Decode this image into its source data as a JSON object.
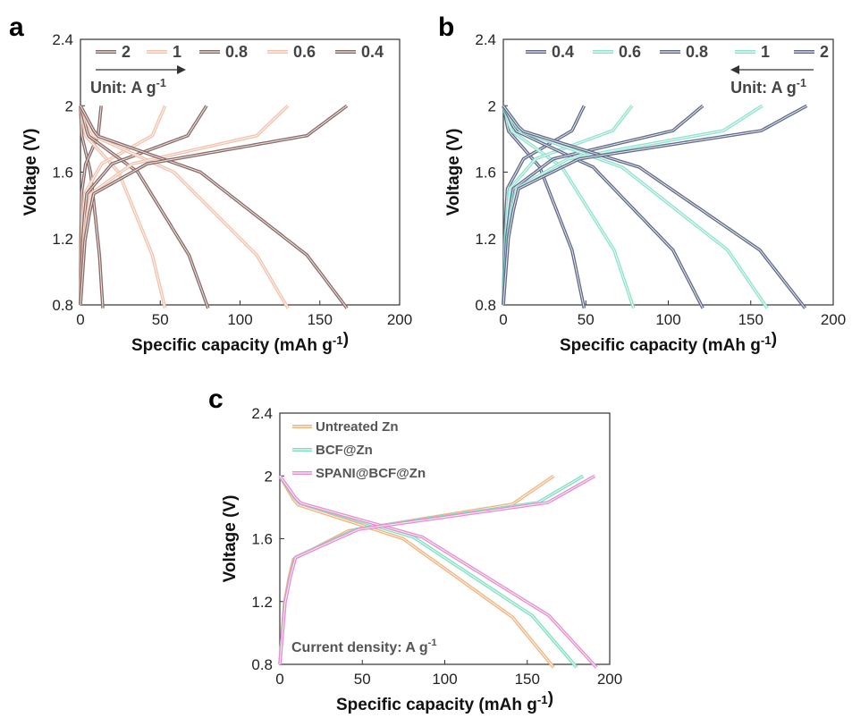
{
  "chart_data": [
    {
      "panel_label": "a",
      "type": "line",
      "xlabel": "Specific capacity (mAh g-1)",
      "ylabel": "Voltage (V)",
      "xlim": [
        0,
        200
      ],
      "ylim": [
        0.8,
        2.4
      ],
      "xticks": [
        0,
        50,
        100,
        150,
        200
      ],
      "yticks": [
        0.8,
        1.2,
        1.6,
        2,
        2.4
      ],
      "legend_position": "top",
      "legend_direction_arrow": "right",
      "note": "Unit: A g-1",
      "grid": false,
      "series": [
        {
          "name": "2",
          "color": "#8a6a66",
          "discharge_capacity": 14,
          "charge_capacity": 13,
          "plateau_v": 1.62
        },
        {
          "name": "1",
          "color": "#f2c2ad",
          "discharge_capacity": 53,
          "charge_capacity": 53,
          "plateau_v": 1.62
        },
        {
          "name": "0.8",
          "color": "#8a6a66",
          "discharge_capacity": 80,
          "charge_capacity": 79,
          "plateau_v": 1.62
        },
        {
          "name": "0.6",
          "color": "#f2c2ad",
          "discharge_capacity": 130,
          "charge_capacity": 130,
          "plateau_v": 1.62
        },
        {
          "name": "0.4",
          "color": "#8a6a66",
          "discharge_capacity": 167,
          "charge_capacity": 167,
          "plateau_v": 1.62
        }
      ]
    },
    {
      "panel_label": "b",
      "type": "line",
      "xlabel": "Specific capacity (mAh g-1)",
      "ylabel": "Voltage (V)",
      "xlim": [
        0,
        200
      ],
      "ylim": [
        0.8,
        2.4
      ],
      "xticks": [
        0,
        50,
        100,
        150,
        200
      ],
      "yticks": [
        0.8,
        1.2,
        1.6,
        2,
        2.4
      ],
      "legend_position": "top",
      "legend_direction_arrow": "left",
      "note": "Unit: A g-1",
      "grid": false,
      "series": [
        {
          "name": "0.4",
          "color": "#616a8a",
          "discharge_capacity": 49,
          "charge_capacity": 49,
          "plateau_v": 1.65
        },
        {
          "name": "0.6",
          "color": "#8ee3cf",
          "discharge_capacity": 79,
          "charge_capacity": 78,
          "plateau_v": 1.65
        },
        {
          "name": "0.8",
          "color": "#616a8a",
          "discharge_capacity": 121,
          "charge_capacity": 121,
          "plateau_v": 1.65
        },
        {
          "name": "1",
          "color": "#8ee3cf",
          "discharge_capacity": 160,
          "charge_capacity": 157,
          "plateau_v": 1.65
        },
        {
          "name": "2",
          "color": "#616a8a",
          "discharge_capacity": 183,
          "charge_capacity": 184,
          "plateau_v": 1.65
        }
      ]
    },
    {
      "panel_label": "c",
      "type": "line",
      "xlabel": "Specific capacity (mAh g-1)",
      "ylabel": "Voltage (V)",
      "xlim": [
        0,
        200
      ],
      "ylim": [
        0.8,
        2.4
      ],
      "xticks": [
        0,
        50,
        100,
        150,
        200
      ],
      "yticks": [
        0.8,
        1.2,
        1.6,
        2,
        2.4
      ],
      "legend_position": "top-left",
      "note": "Current density: A g-1",
      "grid": false,
      "series": [
        {
          "name": "Untreated Zn",
          "color": "#f0b47e",
          "discharge_capacity": 166,
          "charge_capacity": 166,
          "plateau_v": 1.62
        },
        {
          "name": "BCF@Zn",
          "color": "#7fe0c4",
          "discharge_capacity": 180,
          "charge_capacity": 184,
          "plateau_v": 1.63
        },
        {
          "name": "SPANI@BCF@Zn",
          "color": "#e58fcf",
          "discharge_capacity": 192,
          "charge_capacity": 191,
          "plateau_v": 1.63
        }
      ]
    }
  ]
}
